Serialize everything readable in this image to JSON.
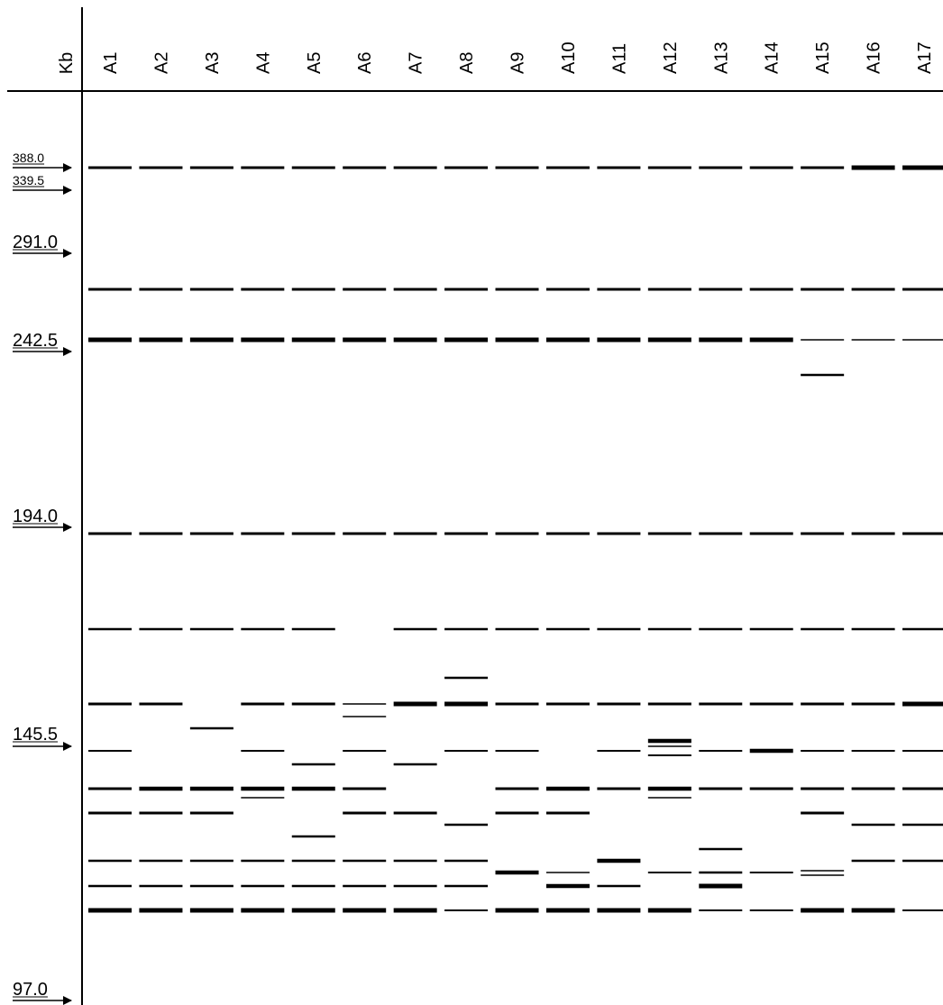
{
  "axis_label": "Kb",
  "lanes": [
    "A1",
    "A2",
    "A3",
    "A4",
    "A5",
    "A6",
    "A7",
    "A8",
    "A9",
    "A10",
    "A11",
    "A12",
    "A13",
    "A14",
    "A15",
    "A16",
    "A17"
  ],
  "markers": [
    "388.0",
    "339.5",
    "291.0",
    "242.5",
    "194.0",
    "145.5",
    "97.0"
  ]
}
